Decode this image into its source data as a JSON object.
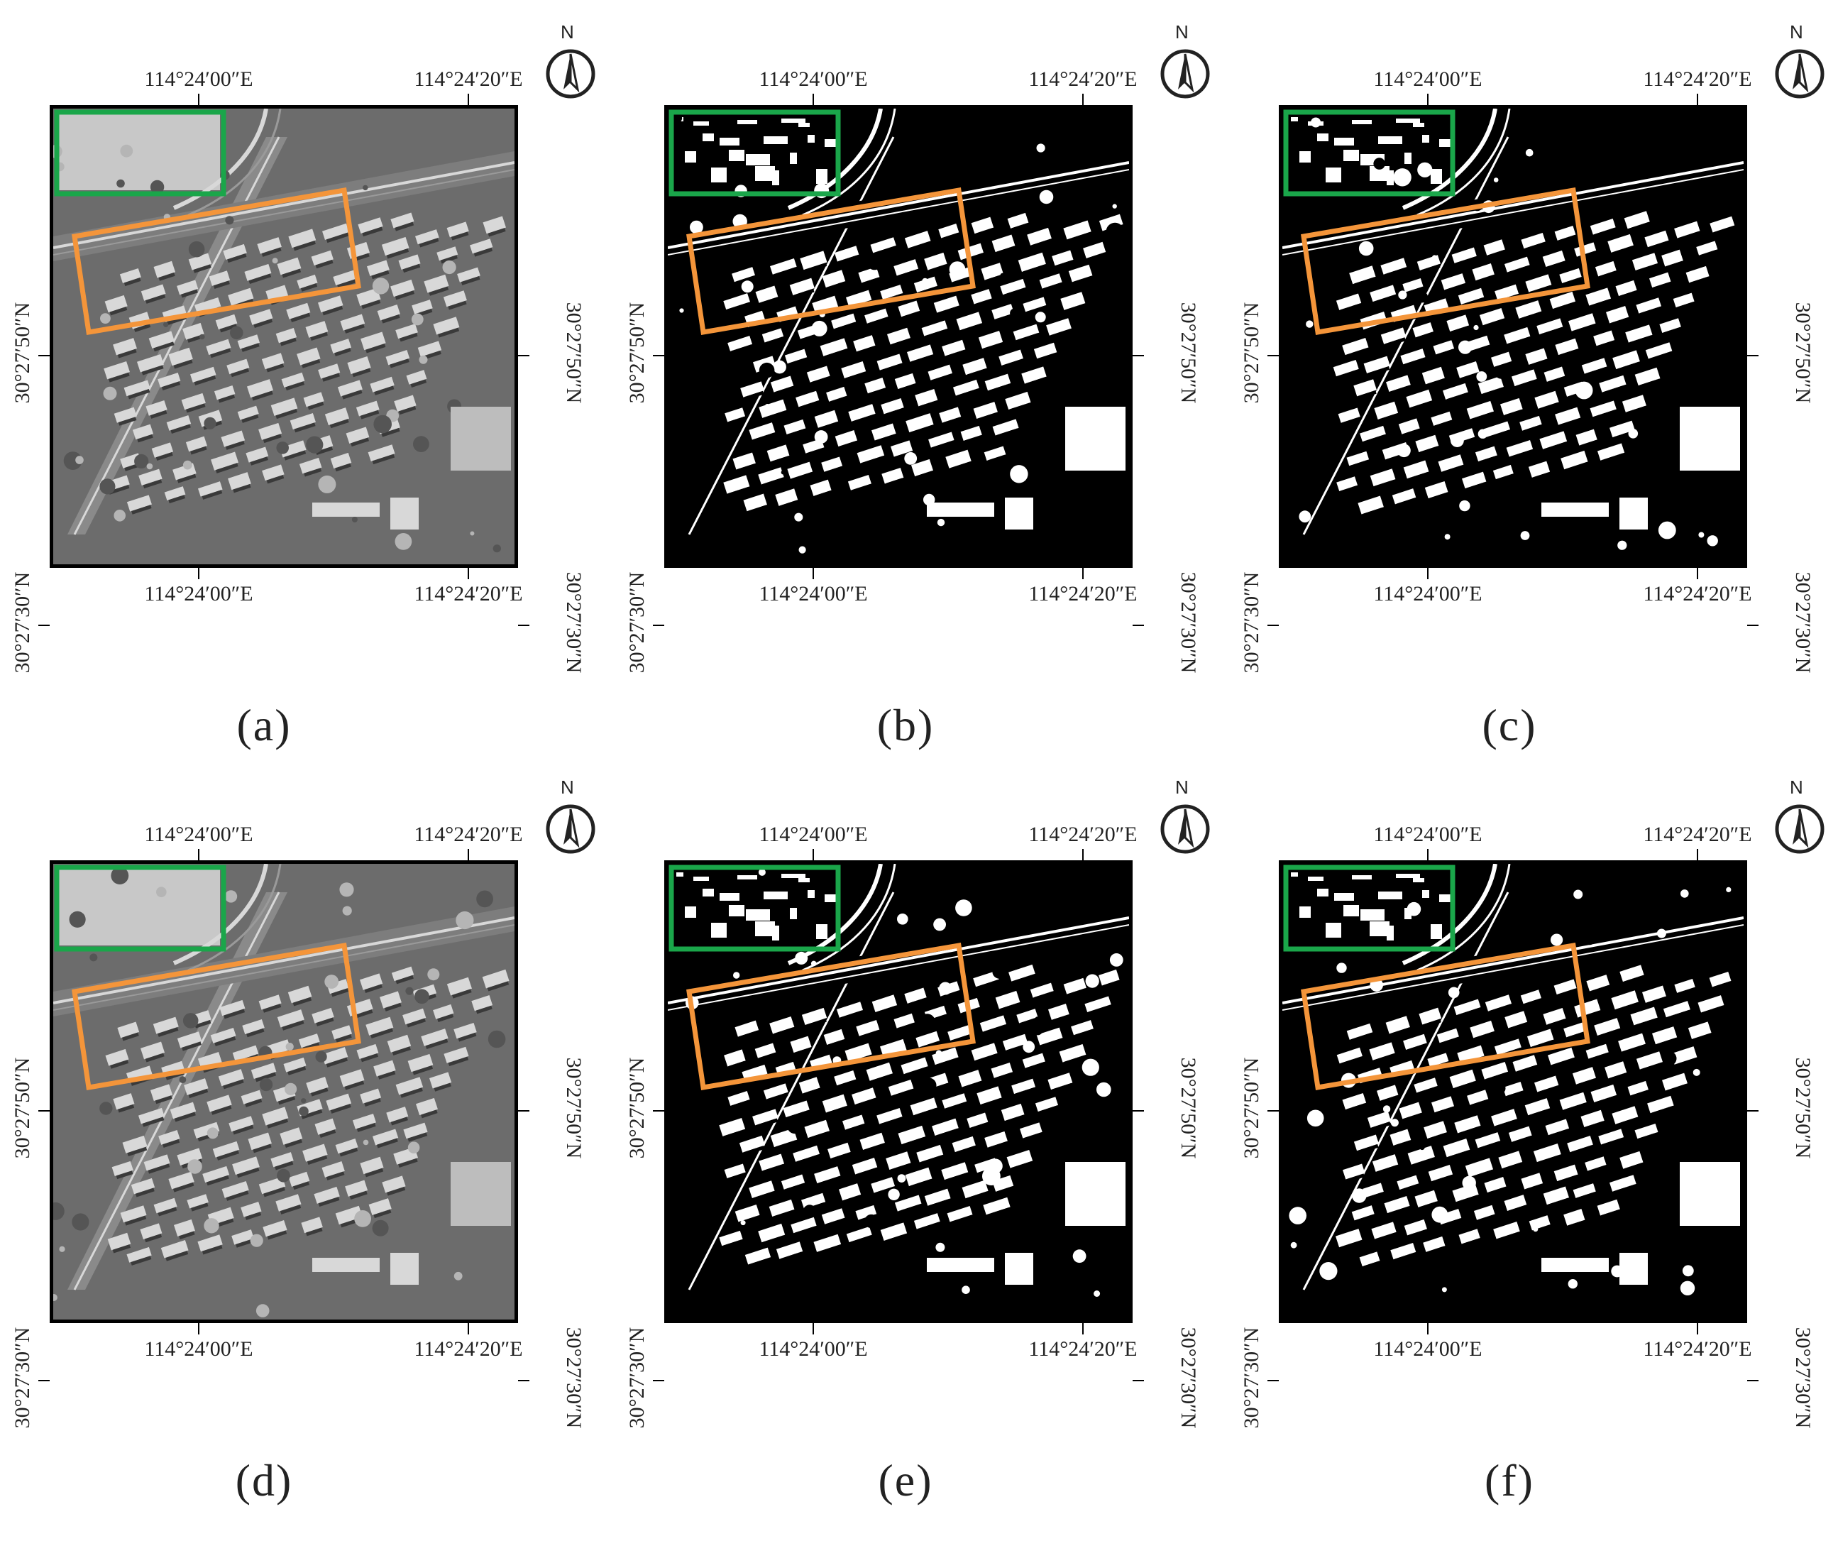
{
  "figure": {
    "lon_left": "114°24′00″E",
    "lon_right": "114°24′20″E",
    "lat_upper": "30°27′50″N",
    "lat_lower": "30°27′30″N",
    "north_label": "N",
    "panels": [
      {
        "label": "(a)",
        "variant": "gray"
      },
      {
        "label": "(b)",
        "variant": "binary"
      },
      {
        "label": "(c)",
        "variant": "binary"
      },
      {
        "label": "(d)",
        "variant": "gray"
      },
      {
        "label": "(e)",
        "variant": "binary"
      },
      {
        "label": "(f)",
        "variant": "binary"
      }
    ],
    "highlight_colors": {
      "upper_box": "#1aa64a",
      "lower_box": "#f4953a"
    }
  }
}
